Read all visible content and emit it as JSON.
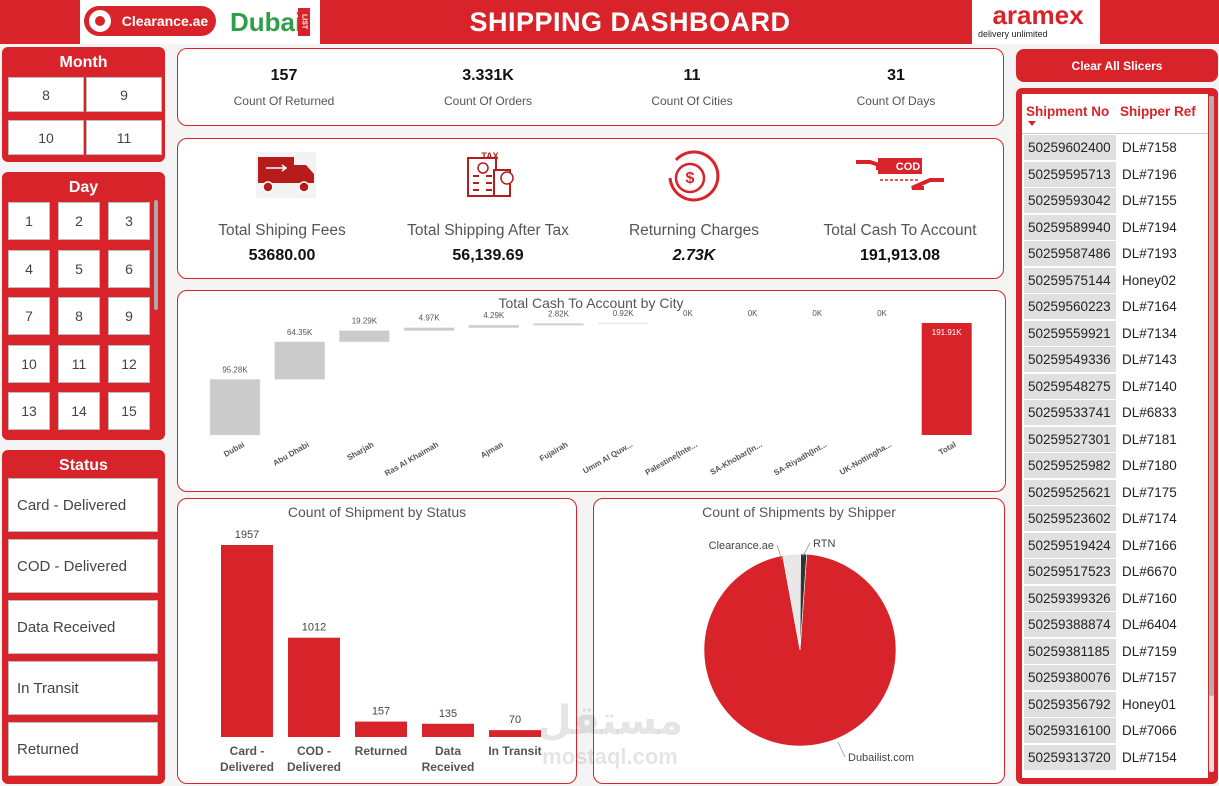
{
  "header": {
    "title": "SHIPPING DASHBOARD",
    "logo_left": "Clearance.ae",
    "logo_middle": "Dubai",
    "logo_middle_sub": "LIST",
    "logo_right": "aramex",
    "logo_right_sub": "delivery unlimited"
  },
  "slicers": {
    "month": {
      "title": "Month",
      "items": [
        "8",
        "9",
        "10",
        "11"
      ]
    },
    "day": {
      "title": "Day",
      "items": [
        "1",
        "2",
        "3",
        "4",
        "5",
        "6",
        "7",
        "8",
        "9",
        "10",
        "11",
        "12",
        "13",
        "14",
        "15"
      ]
    },
    "status": {
      "title": "Status",
      "items": [
        "Card - Delivered",
        "COD - Delivered",
        "Data Received",
        "In Transit",
        "Returned"
      ]
    },
    "clear_button": "Clear All Slicers"
  },
  "kpis": [
    {
      "value": "157",
      "label": "Count Of Returned"
    },
    {
      "value": "3.331K",
      "label": "Count Of Orders"
    },
    {
      "value": "11",
      "label": "Count Of Cities"
    },
    {
      "value": "31",
      "label": "Count Of Days"
    }
  ],
  "cards": [
    {
      "label": "Total Shiping Fees",
      "value": "53680.00"
    },
    {
      "label": "Total Shipping After Tax",
      "value": "56,139.69",
      "icon_label": "TAX"
    },
    {
      "label": "Returning Charges",
      "value": "2.73K"
    },
    {
      "label": "Total Cash To Account",
      "value": "191,913.08",
      "icon_label": "COD"
    }
  ],
  "cash_by_city": {
    "type": "waterfall",
    "title": "Total Cash To Account by City",
    "categories": [
      "Dubai",
      "Abu Dhabi",
      "Sharjah",
      "Ras Al Khaimah",
      "Ajman",
      "Fujairah",
      "Umm Al Quw...",
      "Palestine(Inte...",
      "SA-Khobar(In...",
      "SA-Riyadh(Int...",
      "UK-Nottingha...",
      "Total"
    ],
    "values": [
      95.28,
      64.35,
      19.29,
      4.97,
      4.29,
      2.82,
      0.92,
      0,
      0,
      0,
      0,
      191.91
    ],
    "value_labels": [
      "95.28K",
      "64.35K",
      "19.29K",
      "4.97K",
      "4.29K",
      "2.82K",
      "0.92K",
      "0K",
      "0K",
      "0K",
      "0K",
      "191.91K"
    ],
    "colors": {
      "increase": "#cbcbcb",
      "total": "#d9232a"
    }
  },
  "status_chart": {
    "type": "bar",
    "title": "Count of Shipment by Status",
    "categories": [
      "Card - Delivered",
      "COD - Delivered",
      "Returned",
      "Data Received",
      "In Transit"
    ],
    "values": [
      1957,
      1012,
      157,
      135,
      70
    ],
    "color": "#d9232a"
  },
  "shipper_chart": {
    "type": "pie",
    "title": "Count of Shipments by Shipper",
    "categories": [
      "Dubailist.com",
      "Clearance.ae",
      "RTN"
    ],
    "values": [
      96,
      3,
      1
    ],
    "colors": [
      "#d9232a",
      "#e8e8e8",
      "#333333"
    ]
  },
  "table": {
    "columns": [
      "Shipment No",
      "Shipper Ref"
    ],
    "rows": [
      [
        "50259602400",
        "DL#7158"
      ],
      [
        "50259595713",
        "DL#7196"
      ],
      [
        "50259593042",
        "DL#7155"
      ],
      [
        "50259589940",
        "DL#7194"
      ],
      [
        "50259587486",
        "DL#7193"
      ],
      [
        "50259575144",
        "Honey02"
      ],
      [
        "50259560223",
        "DL#7164"
      ],
      [
        "50259559921",
        "DL#7134"
      ],
      [
        "50259549336",
        "DL#7143"
      ],
      [
        "50259548275",
        "DL#7140"
      ],
      [
        "50259533741",
        "DL#6833"
      ],
      [
        "50259527301",
        "DL#7181"
      ],
      [
        "50259525982",
        "DL#7180"
      ],
      [
        "50259525621",
        "DL#7175"
      ],
      [
        "50259523602",
        "DL#7174"
      ],
      [
        "50259519424",
        "DL#7166"
      ],
      [
        "50259517523",
        "DL#6670"
      ],
      [
        "50259399326",
        "DL#7160"
      ],
      [
        "50259388874",
        "DL#6404"
      ],
      [
        "50259381185",
        "DL#7159"
      ],
      [
        "50259380076",
        "DL#7157"
      ],
      [
        "50259356792",
        "Honey01"
      ],
      [
        "50259316100",
        "DL#7066"
      ],
      [
        "50259313720",
        "DL#7154"
      ]
    ]
  },
  "watermark": {
    "arabic": "مستقل",
    "latin": "mostaql.com"
  }
}
